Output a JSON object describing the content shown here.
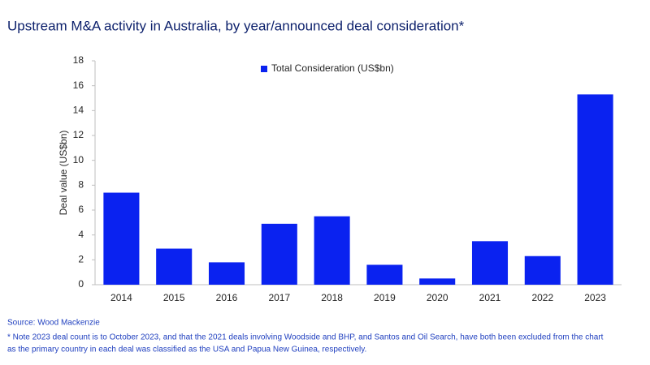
{
  "chart_data": {
    "type": "bar",
    "title": "Upstream M&A activity in Australia, by year/announced deal consideration*",
    "y_label": "Deal value (US$bn)",
    "categories": [
      "2014",
      "2015",
      "2016",
      "2017",
      "2018",
      "2019",
      "2020",
      "2021",
      "2022",
      "2023"
    ],
    "series": [
      {
        "name": "Total Consideration (US$bn)",
        "color": "#0a22f0",
        "values": [
          7.4,
          2.9,
          1.8,
          4.9,
          5.5,
          1.6,
          0.5,
          3.5,
          2.3,
          15.3
        ]
      }
    ],
    "ylim": [
      0,
      18
    ],
    "yticks": [
      0,
      2,
      4,
      6,
      8,
      10,
      12,
      14,
      16,
      18
    ],
    "grid": false,
    "legend": "top-center",
    "source": "Source: Wood Mackenzie",
    "notes": [
      "* Note 2023 deal count is to October 2023, and that the 2021 deals involving Woodside and BHP, and Santos and Oil Search, have both been excluded from the chart",
      "as the primary country in each deal was classified as the USA and Papua New Guinea, respectively."
    ]
  }
}
